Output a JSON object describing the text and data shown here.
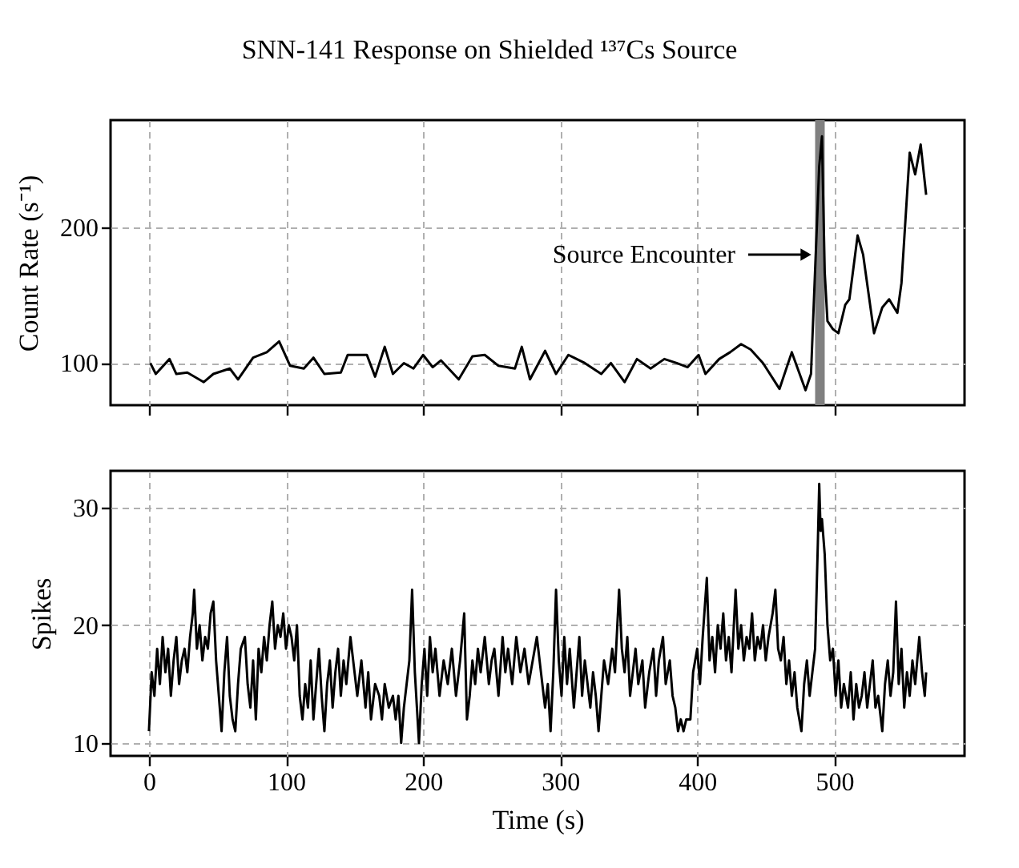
{
  "chart_data": [
    {
      "type": "line",
      "title": "SNN-141 Response on Shielded ¹³⁷Cs Source",
      "ylabel": "Count Rate (s⁻¹)",
      "color": "#000000",
      "x": [
        1,
        5,
        15,
        20,
        28,
        40,
        47,
        59,
        65,
        76,
        86,
        95,
        103,
        113,
        120,
        128,
        140,
        145,
        159,
        165,
        172,
        178,
        186,
        193,
        200,
        207,
        213,
        226,
        236,
        245,
        255,
        267,
        272,
        278,
        289,
        297,
        306,
        310,
        318,
        330,
        337,
        347,
        356,
        366,
        376,
        385,
        393,
        401,
        406,
        416,
        424,
        432,
        439,
        448,
        460,
        469,
        479,
        483,
        489,
        491,
        493,
        495,
        499,
        503,
        508,
        511,
        517,
        521,
        529,
        535,
        540,
        546,
        549,
        555,
        559,
        563,
        567
      ],
      "values": [
        100,
        92,
        103,
        92,
        93,
        86,
        92,
        96,
        88,
        104,
        108,
        116,
        98,
        96,
        104,
        92,
        93,
        106,
        106,
        90,
        112,
        92,
        100,
        96,
        106,
        97,
        102,
        88,
        105,
        106,
        98,
        96,
        112,
        88,
        109,
        92,
        106,
        104,
        100,
        92,
        100,
        86,
        103,
        96,
        103,
        100,
        97,
        106,
        92,
        103,
        108,
        114,
        110,
        100,
        81,
        108,
        80,
        92,
        245,
        267,
        167,
        131,
        125,
        122,
        143,
        147,
        194,
        180,
        122,
        141,
        147,
        137,
        159,
        255,
        239,
        261,
        224
      ],
      "xlim": [
        -28,
        595
      ],
      "xticks": [
        0,
        100,
        200,
        300,
        400,
        500
      ],
      "ylim": [
        69,
        279
      ],
      "yticks": [
        100,
        200
      ],
      "grid": true,
      "tick_labels": "y",
      "bands": [
        {
          "axis": "x",
          "from": 486,
          "to": 493,
          "color": "#808080"
        }
      ],
      "annotations": [
        "Source Encounter"
      ]
    },
    {
      "type": "line",
      "xlabel": "Time (s)",
      "ylabel": "Spikes",
      "color": "#000000",
      "x": [
        0,
        2,
        4,
        6,
        8,
        10,
        12,
        14,
        16,
        18,
        20,
        22,
        24,
        26,
        28,
        30,
        32,
        33,
        35,
        37,
        39,
        41,
        43,
        45,
        47,
        49,
        51,
        53,
        55,
        57,
        59,
        61,
        63,
        65,
        67,
        70,
        72,
        74,
        76,
        78,
        80,
        82,
        84,
        86,
        88,
        90,
        92,
        94,
        96,
        98,
        100,
        102,
        104,
        106,
        108,
        110,
        112,
        114,
        116,
        118,
        120,
        122,
        124,
        126,
        128,
        130,
        132,
        134,
        136,
        138,
        140,
        142,
        144,
        147,
        150,
        152,
        155,
        158,
        160,
        162,
        165,
        168,
        170,
        172,
        175,
        178,
        180,
        182,
        184,
        186,
        188,
        190,
        192,
        194,
        196,
        197,
        199,
        201,
        203,
        205,
        207,
        209,
        212,
        215,
        218,
        221,
        224,
        227,
        230,
        232,
        234,
        236,
        238,
        240,
        242,
        245,
        248,
        250,
        252,
        255,
        258,
        260,
        262,
        265,
        268,
        271,
        274,
        277,
        280,
        283,
        286,
        289,
        291,
        293,
        295,
        297,
        299,
        301,
        303,
        305,
        307,
        310,
        312,
        314,
        316,
        318,
        320,
        322,
        324,
        326,
        328,
        330,
        332,
        335,
        338,
        340,
        343,
        345,
        347,
        349,
        351,
        353,
        355,
        357,
        360,
        362,
        365,
        368,
        370,
        372,
        375,
        377,
        380,
        382,
        384,
        386,
        388,
        390,
        392,
        395,
        397,
        400,
        402,
        404,
        407,
        409,
        411,
        413,
        415,
        417,
        419,
        421,
        423,
        425,
        428,
        430,
        432,
        434,
        436,
        438,
        440,
        442,
        444,
        446,
        448,
        450,
        452,
        455,
        457,
        459,
        461,
        463,
        465,
        467,
        469,
        471,
        473,
        476,
        478,
        480,
        482,
        484,
        486,
        488,
        489,
        490,
        491,
        493,
        495,
        497,
        499,
        501,
        503,
        505,
        507,
        510,
        512,
        514,
        516,
        518,
        520,
        522,
        524,
        526,
        528,
        530,
        532,
        535,
        537,
        539,
        541,
        543,
        545,
        547,
        549,
        551,
        553,
        555,
        557,
        559,
        562,
        564,
        566,
        567
      ],
      "values": [
        11,
        16,
        14,
        18,
        15,
        19,
        16,
        18,
        14,
        17,
        19,
        15,
        17,
        18,
        16,
        19,
        21,
        23,
        18,
        20,
        17,
        19,
        18,
        21,
        22,
        17,
        14,
        11,
        16,
        19,
        14,
        12,
        11,
        15,
        18,
        19,
        15,
        13,
        17,
        12,
        18,
        16,
        19,
        17,
        20,
        22,
        18,
        20,
        19,
        21,
        18,
        20,
        19,
        17,
        20,
        14,
        12,
        15,
        13,
        17,
        12,
        15,
        18,
        14,
        11,
        15,
        17,
        13,
        16,
        18,
        14,
        17,
        15,
        19,
        16,
        14,
        17,
        13,
        16,
        12,
        15,
        14,
        12,
        15,
        13,
        14,
        12,
        14,
        10,
        13,
        15,
        17,
        23,
        16,
        12,
        10,
        15,
        18,
        14,
        19,
        16,
        18,
        14,
        17,
        15,
        18,
        14,
        17,
        21,
        12,
        14,
        17,
        15,
        18,
        16,
        19,
        15,
        17,
        18,
        14,
        19,
        16,
        18,
        15,
        19,
        16,
        18,
        15,
        17,
        19,
        16,
        13,
        15,
        11,
        16,
        23,
        17,
        14,
        19,
        15,
        18,
        13,
        16,
        19,
        14,
        17,
        15,
        13,
        16,
        14,
        11,
        14,
        17,
        15,
        18,
        16,
        23,
        18,
        16,
        19,
        14,
        16,
        18,
        15,
        17,
        13,
        16,
        18,
        14,
        17,
        19,
        15,
        17,
        14,
        13,
        11,
        12,
        11,
        12,
        12,
        16,
        18,
        15,
        19,
        24,
        17,
        19,
        16,
        20,
        18,
        21,
        17,
        19,
        16,
        23,
        18,
        20,
        17,
        19,
        18,
        21,
        17,
        19,
        18,
        20,
        17,
        19,
        21,
        23,
        18,
        17,
        19,
        15,
        17,
        14,
        16,
        13,
        11,
        15,
        17,
        14,
        16,
        18,
        27,
        32,
        28,
        29,
        26,
        20,
        17,
        18,
        14,
        17,
        13,
        15,
        13,
        16,
        12,
        15,
        13,
        14,
        16,
        13,
        15,
        17,
        13,
        14,
        11,
        15,
        17,
        14,
        16,
        22,
        15,
        18,
        13,
        16,
        14,
        17,
        15,
        19,
        16,
        14,
        16
      ],
      "xlim": [
        -28,
        595
      ],
      "xticks": [
        0,
        100,
        200,
        300,
        400,
        500
      ],
      "ylim": [
        8.9,
        33.1
      ],
      "yticks": [
        10,
        20,
        30
      ],
      "grid": true
    }
  ]
}
